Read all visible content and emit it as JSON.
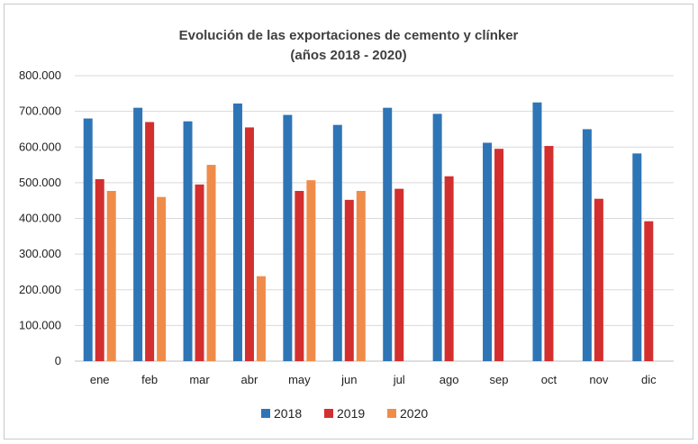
{
  "chart_data": {
    "type": "bar",
    "title": "Evolución de las exportaciones de cemento y clínker",
    "subtitle": "(años 2018 - 2020)",
    "xlabel": "",
    "ylabel": "",
    "categories": [
      "ene",
      "feb",
      "mar",
      "abr",
      "may",
      "jun",
      "jul",
      "ago",
      "sep",
      "oct",
      "nov",
      "dic"
    ],
    "y_ticks": [
      "0",
      "100.000",
      "200.000",
      "300.000",
      "400.000",
      "500.000",
      "600.000",
      "700.000",
      "800.000"
    ],
    "ylim": [
      0,
      800000
    ],
    "grid": true,
    "legend_position": "bottom",
    "series": [
      {
        "name": "2018",
        "color": "#2e75b6",
        "values": [
          680000,
          710000,
          672000,
          722000,
          690000,
          662000,
          710000,
          693000,
          612000,
          725000,
          650000,
          582000
        ]
      },
      {
        "name": "2019",
        "color": "#d32f2f",
        "values": [
          510000,
          670000,
          495000,
          655000,
          477000,
          452000,
          483000,
          518000,
          595000,
          603000,
          455000,
          392000
        ]
      },
      {
        "name": "2020",
        "color": "#f08c4a",
        "values": [
          477000,
          460000,
          550000,
          238000,
          507000,
          477000,
          null,
          null,
          null,
          null,
          null,
          null
        ]
      }
    ]
  }
}
